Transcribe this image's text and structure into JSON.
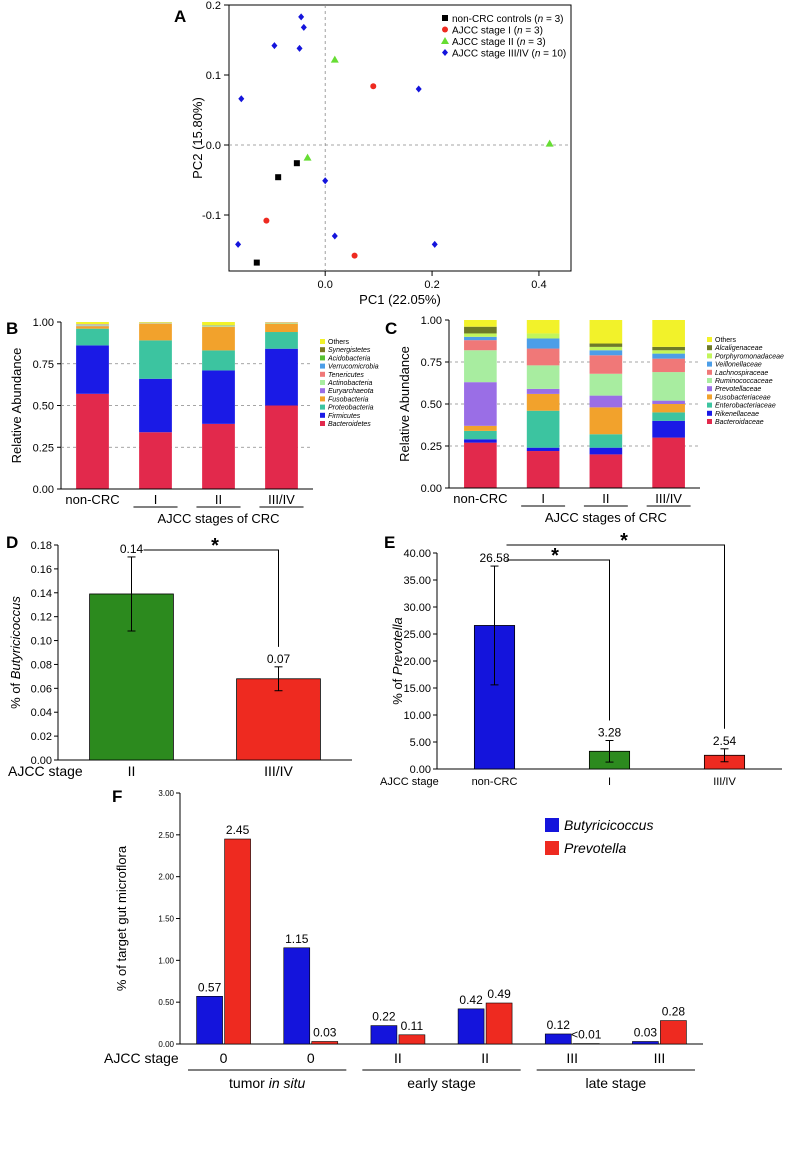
{
  "panels": {
    "a": "A",
    "b": "B",
    "c": "C",
    "d": "D",
    "e": "E",
    "f": "F"
  },
  "colors": {
    "blue": "#1414dc",
    "red": "#ee2a20",
    "green": "#2c8a1e",
    "green_light": "#66dd33",
    "black": "#000000"
  },
  "chart_data": [
    {
      "id": "A",
      "type": "scatter",
      "xlabel": "PC1 (22.05%)",
      "ylabel": "PC2 (15.80%)",
      "xlim": [
        -0.18,
        0.46
      ],
      "ylim": [
        -0.18,
        0.2
      ],
      "xticks": [
        "0.0",
        "0.2",
        "0.4"
      ],
      "yticks": [
        "0.2",
        "0.1",
        "0.0",
        "-0.1"
      ],
      "series": [
        {
          "name": "non-CRC controls",
          "n": "3",
          "marker": "square",
          "color": "#000000",
          "points": [
            [
              -0.053,
              -0.026
            ],
            [
              -0.088,
              -0.046
            ],
            [
              -0.128,
              -0.168
            ]
          ]
        },
        {
          "name": "AJCC stage I",
          "n": "3",
          "marker": "circle",
          "color": "#ee2a20",
          "points": [
            [
              0.09,
              0.084
            ],
            [
              -0.11,
              -0.108
            ],
            [
              0.055,
              -0.158
            ]
          ]
        },
        {
          "name": "AJCC stage II",
          "n": "3",
          "marker": "triangle",
          "color": "#66dd33",
          "points": [
            [
              0.018,
              0.122
            ],
            [
              -0.033,
              -0.018
            ],
            [
              0.42,
              0.002
            ]
          ]
        },
        {
          "name": "AJCC stage III/IV",
          "n": "10",
          "marker": "diamond",
          "color": "#1414dc",
          "points": [
            [
              -0.045,
              0.183
            ],
            [
              -0.04,
              0.168
            ],
            [
              -0.095,
              0.142
            ],
            [
              -0.048,
              0.138
            ],
            [
              0.175,
              0.08
            ],
            [
              -0.157,
              0.066
            ],
            [
              0.0,
              -0.051
            ],
            [
              0.018,
              -0.13
            ],
            [
              0.205,
              -0.142
            ],
            [
              -0.163,
              -0.142
            ]
          ]
        }
      ],
      "legend": {
        "position": "top-right",
        "prefix": "(",
        "n_label": "n",
        "suffix": ")"
      }
    },
    {
      "id": "B",
      "type": "bar",
      "stacked": true,
      "ylabel": "Relative Abundance",
      "xlabel": "AJCC stages of CRC",
      "yticks": [
        "0.00",
        "0.25",
        "0.50",
        "0.75",
        "1.00"
      ],
      "ylim": [
        0,
        1
      ],
      "categories": [
        "non-CRC",
        "I",
        "II",
        "III/IV"
      ],
      "legend": [
        "Others",
        "Synergistetes",
        "Acidobacteria",
        "Verrucomicrobia",
        "Tenericutes",
        "Actinobacteria",
        "Euryarchaeota",
        "Fusobacteria",
        "Proteobacteria",
        "Firmicutes",
        "Bacteroidetes"
      ],
      "series": [
        {
          "name": "Bacteroidetes",
          "color": "#e2294c",
          "values": [
            0.57,
            0.34,
            0.39,
            0.5
          ]
        },
        {
          "name": "Firmicutes",
          "color": "#1a1ae6",
          "values": [
            0.29,
            0.32,
            0.32,
            0.34
          ]
        },
        {
          "name": "Proteobacteria",
          "color": "#3cc4a0",
          "values": [
            0.1,
            0.23,
            0.12,
            0.1
          ]
        },
        {
          "name": "Fusobacteria",
          "color": "#f2a22c",
          "values": [
            0.015,
            0.1,
            0.14,
            0.05
          ]
        },
        {
          "name": "Euryarchaeota",
          "color": "#9a6ee6",
          "values": [
            0.003,
            0.0,
            0.0,
            0.0
          ]
        },
        {
          "name": "Actinobacteria",
          "color": "#a8eda0",
          "values": [
            0.005,
            0.003,
            0.005,
            0.005
          ]
        },
        {
          "name": "Tenericutes",
          "color": "#f07878",
          "values": [
            0.002,
            0.002,
            0.002,
            0.002
          ]
        },
        {
          "name": "Verrucomicrobia",
          "color": "#4c9ee8",
          "values": [
            0.002,
            0.001,
            0.002,
            0.001
          ]
        },
        {
          "name": "Acidobacteria",
          "color": "#55c030",
          "values": [
            0.0,
            0.0,
            0.0,
            0.0
          ]
        },
        {
          "name": "Synergistetes",
          "color": "#7a7a20",
          "values": [
            0.0,
            0.0,
            0.0,
            0.0
          ]
        },
        {
          "name": "Others",
          "color": "#f2f22a",
          "values": [
            0.013,
            0.004,
            0.021,
            0.002
          ]
        }
      ]
    },
    {
      "id": "C",
      "type": "bar",
      "stacked": true,
      "ylabel": "Relative Abundance",
      "xlabel": "AJCC stages of CRC",
      "yticks": [
        "0.00",
        "0.25",
        "0.50",
        "0.75",
        "1.00"
      ],
      "ylim": [
        0,
        1
      ],
      "categories": [
        "non-CRC",
        "I",
        "II",
        "III/IV"
      ],
      "legend": [
        "Others",
        "Alcaligenaceae",
        "Porphyromonadaceae",
        "Veillonellaceae",
        "Lachnospiraceae",
        "Ruminococcaceae",
        "Prevotellaceae",
        "Fusobacteriaceae",
        "Enterobacteriaceae",
        "Rikenellaceae",
        "Bacteroidaceae"
      ],
      "series": [
        {
          "name": "Bacteroidaceae",
          "color": "#e2294c",
          "values": [
            0.27,
            0.22,
            0.2,
            0.3
          ]
        },
        {
          "name": "Rikenellaceae",
          "color": "#1a1ae6",
          "values": [
            0.02,
            0.02,
            0.04,
            0.1
          ]
        },
        {
          "name": "Enterobacteriaceae",
          "color": "#3cc4a0",
          "values": [
            0.05,
            0.22,
            0.08,
            0.05
          ]
        },
        {
          "name": "Fusobacteriaceae",
          "color": "#f2a22c",
          "values": [
            0.03,
            0.1,
            0.16,
            0.05
          ]
        },
        {
          "name": "Prevotellaceae",
          "color": "#9a6ee6",
          "values": [
            0.26,
            0.03,
            0.07,
            0.02
          ]
        },
        {
          "name": "Ruminococcaceae",
          "color": "#a8eda0",
          "values": [
            0.19,
            0.14,
            0.13,
            0.17
          ]
        },
        {
          "name": "Lachnospiraceae",
          "color": "#f07878",
          "values": [
            0.06,
            0.1,
            0.11,
            0.08
          ]
        },
        {
          "name": "Veillonellaceae",
          "color": "#4c9ee8",
          "values": [
            0.02,
            0.06,
            0.03,
            0.03
          ]
        },
        {
          "name": "Porphyromonadaceae",
          "color": "#c2f55a",
          "values": [
            0.02,
            0.03,
            0.02,
            0.02
          ]
        },
        {
          "name": "Alcaligenaceae",
          "color": "#6e7a28",
          "values": [
            0.04,
            0.0,
            0.02,
            0.02
          ]
        },
        {
          "name": "Others",
          "color": "#f2f22a",
          "values": [
            0.04,
            0.08,
            0.14,
            0.16
          ]
        }
      ]
    },
    {
      "id": "D",
      "type": "bar",
      "ylabel_prefix": "% of ",
      "ylabel_italic": "Butyricicoccus",
      "xcat_label": "AJCC stage",
      "yticks": [
        "0.00",
        "0.02",
        "0.04",
        "0.06",
        "0.08",
        "0.10",
        "0.12",
        "0.14",
        "0.16",
        "0.18"
      ],
      "ylim": [
        0,
        0.18
      ],
      "categories": [
        "II",
        "III/IV"
      ],
      "values": [
        0.139,
        0.068
      ],
      "labels": [
        "0.14",
        "0.07"
      ],
      "errors": [
        0.031,
        0.01
      ],
      "colors": [
        "#2c8a1e",
        "#ee2a20"
      ],
      "annotations": [
        "*"
      ]
    },
    {
      "id": "E",
      "type": "bar",
      "ylabel_prefix": "% of ",
      "ylabel_italic": "Prevotella",
      "xcat_label": "AJCC stage",
      "yticks": [
        "0.00",
        "5.00",
        "10.00",
        "15.00",
        "20.00",
        "25.00",
        "30.00",
        "35.00",
        "40.00"
      ],
      "ylim": [
        0,
        40
      ],
      "categories": [
        "non-CRC",
        "I",
        "III/IV"
      ],
      "values": [
        26.58,
        3.28,
        2.54
      ],
      "labels": [
        "26.58",
        "3.28",
        "2.54"
      ],
      "errors": [
        11.0,
        2.0,
        1.2
      ],
      "colors": [
        "#1414dc",
        "#2c8a1e",
        "#ee2a20"
      ],
      "annotations": [
        "*",
        "*"
      ]
    },
    {
      "id": "F",
      "type": "bar",
      "ylabel": "% of target gut microflora",
      "xcat_label": "AJCC stage",
      "yticks": [
        "0.00",
        "0.50",
        "1.00",
        "1.50",
        "2.00",
        "2.50",
        "3.00"
      ],
      "ylim": [
        0,
        3
      ],
      "categories": [
        "0",
        "0",
        "II",
        "II",
        "III",
        "III"
      ],
      "groups": [
        {
          "label": "tumor ",
          "italic": "in situ"
        },
        {
          "label": "early stage",
          "italic": ""
        },
        {
          "label": "late stage",
          "italic": ""
        }
      ],
      "series": [
        {
          "name": "Butyricicoccus",
          "color": "#1414dc",
          "values": [
            0.57,
            1.15,
            0.22,
            0.42,
            0.12,
            0.03
          ],
          "labels": [
            "0.57",
            "1.15",
            "0.22",
            "0.42",
            "0.12",
            "0.03"
          ]
        },
        {
          "name": "Prevotella",
          "color": "#ee2a20",
          "values": [
            2.45,
            0.03,
            0.11,
            0.49,
            0.005,
            0.28
          ],
          "labels": [
            "2.45",
            "0.03",
            "0.11",
            "0.49",
            "<0.01",
            "0.28"
          ]
        }
      ]
    }
  ]
}
